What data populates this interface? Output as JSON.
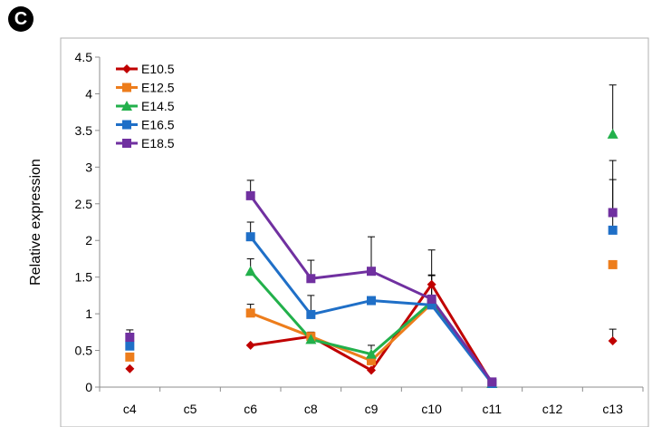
{
  "panel_label": "C",
  "colors": {
    "E10.5": "#c00000",
    "E12.5": "#ed7d1c",
    "E14.5": "#22b04b",
    "E16.5": "#1f6fc7",
    "E18.5": "#7030a0"
  },
  "chart_data": {
    "type": "line",
    "ylabel": "Relative expression",
    "xlabel": "",
    "categories": [
      "c4",
      "c5",
      "c6",
      "c8",
      "c9",
      "c10",
      "c11",
      "c12",
      "c13"
    ],
    "ylim": [
      0,
      4.5
    ],
    "yticks": [
      0,
      0.5,
      1,
      1.5,
      2,
      2.5,
      3,
      3.5,
      4,
      4.5
    ],
    "ytick_labels": [
      "0",
      "0.5",
      "1",
      "1.5",
      "2",
      "2.5",
      "3",
      "3.5",
      "4",
      "4.5"
    ],
    "legend_position": "top-left",
    "grid": false,
    "series": [
      {
        "name": "E10.5",
        "marker": "diamond",
        "values": [
          0.25,
          null,
          0.57,
          0.69,
          0.23,
          1.4,
          0.05,
          null,
          0.63
        ],
        "errors": [
          0,
          null,
          0,
          0.06,
          0,
          0.47,
          0,
          null,
          0.16
        ]
      },
      {
        "name": "E12.5",
        "marker": "square",
        "values": [
          0.41,
          null,
          1.01,
          0.69,
          0.36,
          1.14,
          0.05,
          null,
          1.67
        ],
        "errors": [
          0,
          null,
          0.12,
          0,
          0.07,
          0,
          0,
          null,
          0
        ]
      },
      {
        "name": "E14.5",
        "marker": "triangle",
        "values": [
          null,
          null,
          1.58,
          0.65,
          0.45,
          1.16,
          0.05,
          null,
          3.45
        ],
        "errors": [
          null,
          null,
          0.17,
          0,
          0.12,
          0.37,
          0,
          null,
          0.67
        ]
      },
      {
        "name": "E16.5",
        "marker": "square",
        "values": [
          0.56,
          null,
          2.05,
          0.99,
          1.18,
          1.12,
          0.05,
          null,
          2.14
        ],
        "errors": [
          0,
          null,
          0.2,
          0.26,
          0,
          0,
          0,
          null,
          0.69
        ]
      },
      {
        "name": "E18.5",
        "marker": "square",
        "values": [
          0.68,
          null,
          2.61,
          1.48,
          1.58,
          1.2,
          0.07,
          null,
          2.38
        ],
        "errors": [
          0.1,
          null,
          0.21,
          0.25,
          0.47,
          0.32,
          0,
          null,
          0.71
        ]
      }
    ]
  }
}
